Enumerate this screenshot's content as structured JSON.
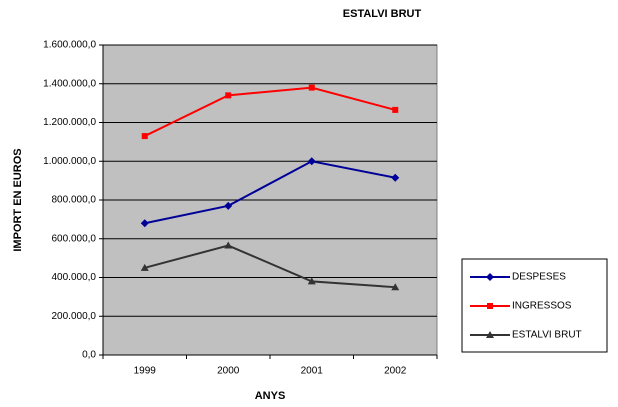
{
  "chart_data": {
    "type": "line",
    "title": "ESTALVI BRUT",
    "x_label": "ANYS",
    "y_label": "IMPORT EN EUROS",
    "categories": [
      "1999",
      "2000",
      "2001",
      "2002"
    ],
    "series": [
      {
        "name": "DESPESES",
        "color": "#000099",
        "marker": "diamond",
        "values": [
          680000,
          770000,
          1000000,
          915000
        ]
      },
      {
        "name": "INGRESSOS",
        "color": "#ff0000",
        "marker": "square",
        "values": [
          1130000,
          1340000,
          1380000,
          1265000
        ]
      },
      {
        "name": "ESTALVI BRUT",
        "color": "#333333",
        "marker": "triangle",
        "values": [
          450000,
          565000,
          380000,
          350000
        ]
      }
    ],
    "ylim": [
      0,
      1600000
    ],
    "yticks": [
      {
        "value": 0,
        "label": "0,0"
      },
      {
        "value": 200000,
        "label": "200.000,0"
      },
      {
        "value": 400000,
        "label": "400.000,0"
      },
      {
        "value": 600000,
        "label": "600.000,0"
      },
      {
        "value": 800000,
        "label": "800.000,0"
      },
      {
        "value": 1000000,
        "label": "1.000.000,0"
      },
      {
        "value": 1200000,
        "label": "1.200.000,0"
      },
      {
        "value": 1400000,
        "label": "1.400.000,0"
      },
      {
        "value": 1600000,
        "label": "1.600.000,0"
      }
    ],
    "grid": true,
    "plot_background": "#c0c0c0",
    "legend": "right"
  }
}
